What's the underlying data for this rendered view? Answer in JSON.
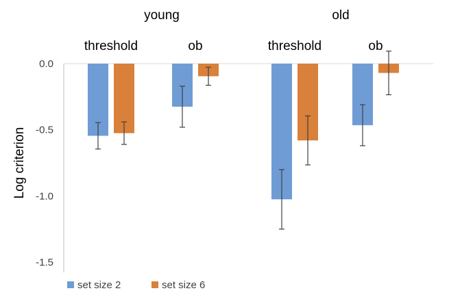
{
  "chart_data": {
    "type": "bar",
    "ylabel": "Log criterion",
    "ylim": [
      -1.5,
      0.0
    ],
    "yticks": [
      0.0,
      -0.5,
      -1.0,
      -1.5
    ],
    "ytick_labels": [
      "0.0",
      "-0.5",
      "-1.0",
      "-1.5"
    ],
    "groups": [
      "young",
      "old"
    ],
    "categories": [
      "threshold",
      "ob",
      "threshold",
      "ob"
    ],
    "category_group": [
      "young",
      "young",
      "old",
      "old"
    ],
    "series": [
      {
        "name": "set size 2",
        "color": "#6f9cd5",
        "values": [
          -0.545,
          -0.325,
          -1.025,
          -0.465
        ],
        "error": [
          0.1,
          0.155,
          0.225,
          0.155
        ]
      },
      {
        "name": "set size 6",
        "color": "#d9803a",
        "values": [
          -0.525,
          -0.095,
          -0.58,
          -0.07
        ],
        "error": [
          0.085,
          0.068,
          0.185,
          0.165
        ]
      }
    ],
    "legend_position": "bottom-left",
    "grid": false
  }
}
